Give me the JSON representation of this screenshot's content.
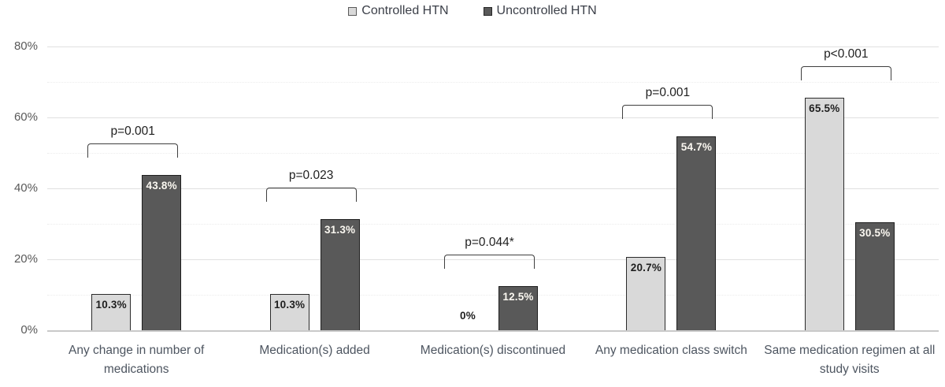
{
  "chart_data": {
    "type": "bar",
    "title": "",
    "categories": [
      "Any change in number of medications",
      "Medication(s) added",
      "Medication(s) discontinued",
      "Any medication class switch",
      "Same medication regimen at all study visits"
    ],
    "series": [
      {
        "name": "Controlled HTN",
        "fill_color": "#d9d9d9",
        "border_color": "#2b2b2b",
        "label_color": "#1f1f1f",
        "values": [
          10.3,
          10.3,
          0,
          20.7,
          65.5
        ],
        "labels": [
          "10.3%",
          "10.3%",
          "0%",
          "20.7%",
          "65.5%"
        ]
      },
      {
        "name": "Uncontrolled HTN",
        "fill_color": "#595959",
        "border_color": "#1f1f1f",
        "label_color": "#fbf8f1",
        "values": [
          43.8,
          31.3,
          12.5,
          54.7,
          30.5
        ],
        "labels": [
          "43.8%",
          "31.3%",
          "12.5%",
          "54.7%",
          "30.5%"
        ]
      }
    ],
    "p_values": [
      "p=0.001",
      "p=0.023",
      "p=0.044*",
      "p=0.001",
      "p<0.001"
    ],
    "y_ticks": [
      "0%",
      "20%",
      "40%",
      "60%",
      "80%"
    ],
    "y_tick_values": [
      0,
      20,
      40,
      60,
      80
    ],
    "ylim": [
      0,
      80
    ],
    "grid": true,
    "grid_minor_step": 10,
    "legend_position": "top",
    "xlabel": "",
    "ylabel": ""
  }
}
